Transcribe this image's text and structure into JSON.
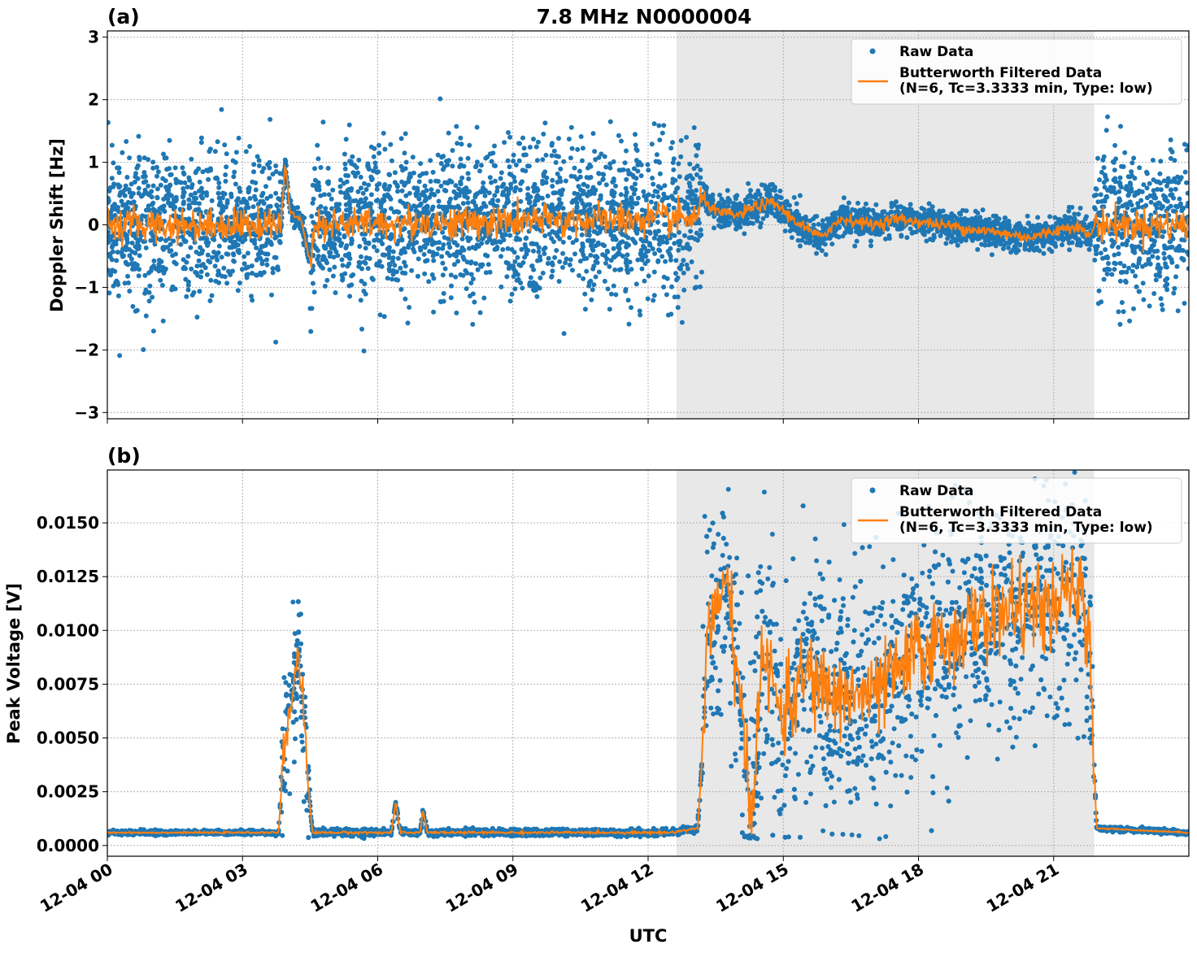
{
  "chart_data": [
    {
      "type": "scatter",
      "panel_label": "(a)",
      "title": "7.8 MHz N0000004",
      "xlabel": "",
      "ylabel": "Doppler Shift [Hz]",
      "xlim_hours": [
        0,
        24
      ],
      "ylim": [
        -3.1,
        3.1
      ],
      "yticks": [
        -3,
        -2,
        -1,
        0,
        1,
        2,
        3
      ],
      "ytick_labels": [
        "−3",
        "−2",
        "−1",
        "0",
        "1",
        "2",
        "3"
      ],
      "grid": true,
      "legend_placement": "upper-right",
      "legend": [
        "Raw Data",
        "Butterworth Filtered Data",
        "(N=6, Tc=3.3333 min, Type: low)"
      ],
      "shaded_span_hours": [
        12.63,
        21.9
      ],
      "colors": {
        "raw": "#1f77b4",
        "filtered": "#ff7f0e",
        "shade": "#e8e8e8"
      },
      "raw_spread_segments": [
        [
          0,
          3.85,
          0.6
        ],
        [
          3.85,
          4.5,
          0.08
        ],
        [
          4.5,
          13.2,
          0.6
        ],
        [
          13.2,
          21.9,
          0.12
        ],
        [
          21.9,
          24,
          0.6
        ]
      ],
      "filtered_keypoints": [
        [
          0,
          0
        ],
        [
          3.85,
          0
        ],
        [
          3.95,
          1.0
        ],
        [
          4.05,
          0.2
        ],
        [
          4.3,
          0.1
        ],
        [
          4.5,
          -0.6
        ],
        [
          4.6,
          0
        ],
        [
          13.1,
          0.1
        ],
        [
          13.2,
          0.45
        ],
        [
          13.5,
          0.2
        ],
        [
          14,
          0.15
        ],
        [
          14.4,
          0.3
        ],
        [
          14.8,
          0.35
        ],
        [
          15.2,
          0.1
        ],
        [
          15.8,
          -0.2
        ],
        [
          16.3,
          0.1
        ],
        [
          17,
          0
        ],
        [
          17.5,
          0.1
        ],
        [
          18,
          0.05
        ],
        [
          18.5,
          0
        ],
        [
          19,
          -0.05
        ],
        [
          19.5,
          -0.1
        ],
        [
          20,
          -0.15
        ],
        [
          20.5,
          -0.2
        ],
        [
          21,
          -0.1
        ],
        [
          21.5,
          0
        ],
        [
          21.8,
          -0.2
        ],
        [
          21.9,
          0
        ],
        [
          24,
          0
        ]
      ]
    },
    {
      "type": "scatter",
      "panel_label": "(b)",
      "title": "",
      "xlabel": "UTC",
      "ylabel": "Peak Voltage [V]",
      "xlim_hours": [
        0,
        24
      ],
      "ylim": [
        -0.0005,
        0.01746
      ],
      "yticks": [
        0,
        0.0025,
        0.005,
        0.0075,
        0.01,
        0.0125,
        0.015
      ],
      "ytick_labels": [
        "0.0000",
        "0.0025",
        "0.0050",
        "0.0075",
        "0.0100",
        "0.0125",
        "0.0150"
      ],
      "xticks_hours": [
        0,
        3,
        6,
        9,
        12,
        15,
        18,
        21
      ],
      "xtick_labels": [
        "12-04 00",
        "12-04 03",
        "12-04 06",
        "12-04 09",
        "12-04 12",
        "12-04 15",
        "12-04 18",
        "12-04 21"
      ],
      "grid": true,
      "legend_placement": "upper-right",
      "legend": [
        "Raw Data",
        "Butterworth Filtered Data",
        "(N=6, Tc=3.3333 min, Type: low)"
      ],
      "shaded_span_hours": [
        12.63,
        21.9
      ],
      "colors": {
        "raw": "#1f77b4",
        "filtered": "#ff7f0e",
        "shade": "#e8e8e8"
      },
      "raw_spread_segments": [
        [
          0,
          3.85,
          5e-05
        ],
        [
          3.85,
          4.5,
          0.0015
        ],
        [
          4.5,
          13.2,
          8e-05
        ],
        [
          13.2,
          21.9,
          0.0028
        ],
        [
          21.9,
          24,
          5e-05
        ]
      ],
      "filtered_keypoints": [
        [
          0,
          0.0006
        ],
        [
          3.8,
          0.0006
        ],
        [
          3.9,
          0.004
        ],
        [
          4.1,
          0.007
        ],
        [
          4.25,
          0.0095
        ],
        [
          4.45,
          0.003
        ],
        [
          4.55,
          0.0006
        ],
        [
          6.3,
          0.0006
        ],
        [
          6.4,
          0.002
        ],
        [
          6.5,
          0.0006
        ],
        [
          6.95,
          0.0006
        ],
        [
          7.0,
          0.0017
        ],
        [
          7.1,
          0.0006
        ],
        [
          12.5,
          0.0006
        ],
        [
          13.1,
          0.0008
        ],
        [
          13.2,
          0.004
        ],
        [
          13.3,
          0.01
        ],
        [
          13.8,
          0.012
        ],
        [
          14.1,
          0.005
        ],
        [
          14.3,
          0.001
        ],
        [
          14.5,
          0.009
        ],
        [
          15,
          0.006
        ],
        [
          15.5,
          0.008
        ],
        [
          16,
          0.007
        ],
        [
          17,
          0.007
        ],
        [
          18,
          0.009
        ],
        [
          19,
          0.01
        ],
        [
          20,
          0.011
        ],
        [
          21,
          0.011
        ],
        [
          21.5,
          0.012
        ],
        [
          21.8,
          0.01
        ],
        [
          21.95,
          0.0008
        ],
        [
          24,
          0.0006
        ]
      ]
    }
  ]
}
